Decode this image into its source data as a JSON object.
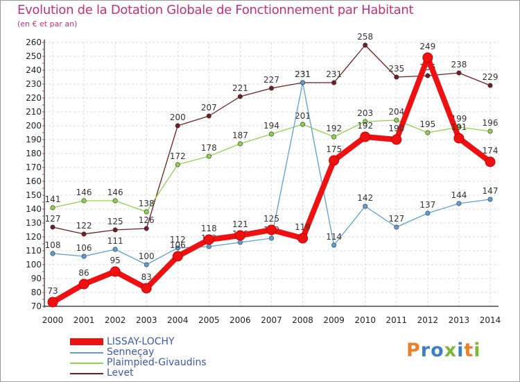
{
  "header": {
    "title": "Evolution de la Dotation Globale de Fonctionnement par Habitant",
    "subtitle": "(en € et par an)"
  },
  "logo": {
    "text": "Proxiti",
    "colors": [
      "#e8812a",
      "#3c7fc4",
      "#3c7fc4",
      "#7ab83a",
      "#3c7fc4",
      "#e8812a",
      "#7ab83a"
    ]
  },
  "chart_data": {
    "type": "line",
    "x": [
      2000,
      2001,
      2002,
      2003,
      2004,
      2005,
      2006,
      2007,
      2008,
      2009,
      2010,
      2011,
      2012,
      2013,
      2014
    ],
    "ylim": [
      70,
      260
    ],
    "yticks": [
      70,
      80,
      90,
      100,
      110,
      120,
      130,
      140,
      150,
      160,
      170,
      180,
      190,
      200,
      210,
      220,
      230,
      240,
      250,
      260
    ],
    "grid": true,
    "legend": "bottom-left",
    "series": [
      {
        "name": "Levet",
        "color": "#6e1f23",
        "values": [
          127,
          122,
          125,
          126,
          200,
          207,
          221,
          227,
          231,
          231,
          258,
          235,
          236,
          238,
          229
        ],
        "labels": [
          "127",
          "122",
          "125",
          "126",
          "200",
          "207",
          "221",
          "227",
          "231",
          "231",
          "258",
          "235",
          "236",
          "238",
          "229"
        ]
      },
      {
        "name": "Plaimpied-Givaudins",
        "color": "#8fd14f",
        "values": [
          141,
          146,
          146,
          138,
          172,
          178,
          187,
          194,
          201,
          192,
          203,
          204,
          195,
          199,
          196
        ],
        "labels": [
          "141",
          "146",
          "146",
          "138",
          "172",
          "178",
          "187",
          "194",
          "201",
          "192",
          "203",
          "204",
          "195",
          "199",
          "196"
        ]
      },
      {
        "name": "Senneçay",
        "color": "#5d9ed6",
        "values": [
          108,
          106,
          111,
          100,
          112,
          113,
          116,
          119,
          231,
          114,
          142,
          127,
          137,
          144,
          147
        ],
        "labels": [
          "108",
          "106",
          "111",
          "100",
          "112",
          "113",
          "116",
          "119",
          "231",
          "114",
          "142",
          "127",
          "137",
          "144",
          "147"
        ]
      },
      {
        "name": "LISSAY-LOCHY",
        "color": "#ee1111",
        "values": [
          73,
          86,
          95,
          83,
          106,
          118,
          121,
          125,
          119,
          175,
          192,
          190,
          249,
          191,
          174
        ],
        "labels": [
          "73",
          "86",
          "95",
          "83",
          "106",
          "118",
          "121",
          "125",
          "119",
          "175",
          "192",
          "190",
          "249",
          "191",
          "174"
        ]
      }
    ],
    "legend_order": [
      "LISSAY-LOCHY",
      "Senneçay",
      "Plaimpied-Givaudins",
      "Levet"
    ]
  }
}
